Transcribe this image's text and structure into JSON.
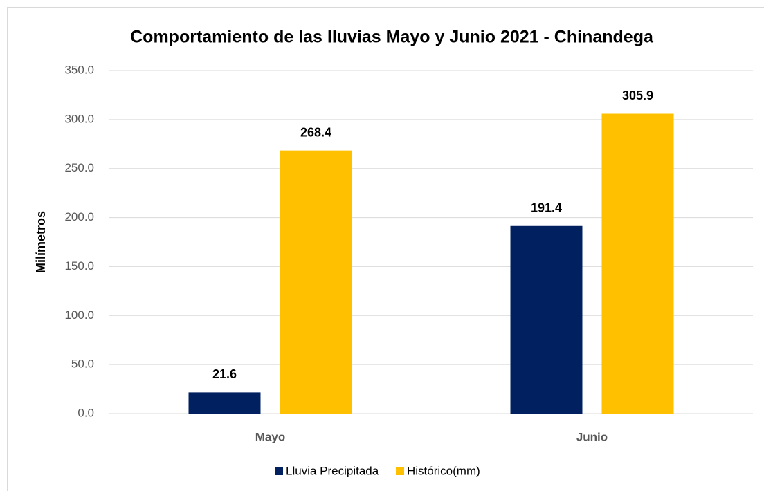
{
  "chart_data": {
    "type": "bar",
    "title": "Comportamiento de las lluvias Mayo y Junio 2021 - Chinandega",
    "y_label": "Milímetros",
    "categories": [
      "Mayo",
      "Junio"
    ],
    "series": [
      {
        "name": "Lluvia Precipitada",
        "color": "#002060",
        "values": [
          21.6,
          191.4
        ]
      },
      {
        "name": "Histórico(mm)",
        "color": "#ffc000",
        "values": [
          268.4,
          305.9
        ]
      }
    ],
    "ylim": [
      0,
      350
    ],
    "yticks": [
      {
        "value": 0,
        "label": "0.0"
      },
      {
        "value": 50,
        "label": "50.0"
      },
      {
        "value": 100,
        "label": "100.0"
      },
      {
        "value": 150,
        "label": "150.0"
      },
      {
        "value": 200,
        "label": "200.0"
      },
      {
        "value": 250,
        "label": "250.0"
      },
      {
        "value": 300,
        "label": "300.0"
      },
      {
        "value": 350,
        "label": "350.0"
      }
    ],
    "grid": true,
    "legend": "bottom"
  }
}
